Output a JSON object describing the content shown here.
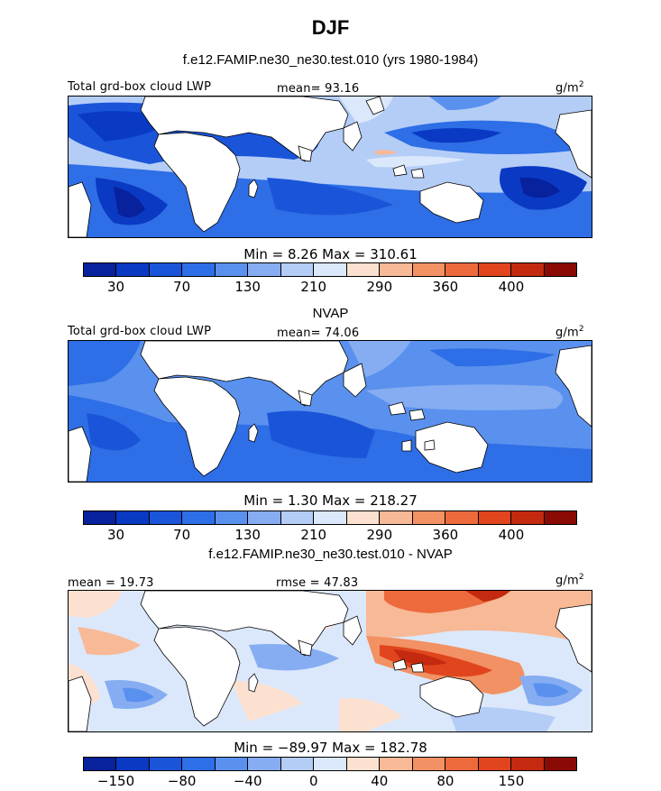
{
  "title": "DJF",
  "top_subtitle": "f.e12.FAMIP.ne30_ne30.test.010 (yrs 1980-1984)",
  "panels": [
    {
      "left_label": "Total grd-box cloud LWP",
      "center_label": "mean=  93.16",
      "unit": "g/m",
      "unit_sup": "2",
      "minmax": "Min =   8.26 Max = 310.61",
      "colorbar": {
        "colors": [
          "#08219c",
          "#0a3ac4",
          "#1a55d9",
          "#2e6ee6",
          "#5a91ee",
          "#86adf2",
          "#b4cdf7",
          "#dbe8fb",
          "#fde1d0",
          "#f8b996",
          "#f29163",
          "#ec6a3c",
          "#e0451e",
          "#c32a0f",
          "#8a0a06"
        ],
        "ticks": [
          "30",
          "70",
          "130",
          "210",
          "290",
          "360",
          "400"
        ]
      }
    },
    {
      "subtitle": "NVAP",
      "left_label": "Total grd-box cloud LWP",
      "center_label": "mean=  74.06",
      "unit": "g/m",
      "unit_sup": "2",
      "minmax": "Min =   1.30 Max = 218.27",
      "colorbar": {
        "colors": [
          "#08219c",
          "#0a3ac4",
          "#1a55d9",
          "#2e6ee6",
          "#5a91ee",
          "#86adf2",
          "#b4cdf7",
          "#dbe8fb",
          "#fde1d0",
          "#f8b996",
          "#f29163",
          "#ec6a3c",
          "#e0451e",
          "#c32a0f",
          "#8a0a06"
        ],
        "ticks": [
          "30",
          "70",
          "130",
          "210",
          "290",
          "360",
          "400"
        ]
      }
    },
    {
      "subtitle": "f.e12.FAMIP.ne30_ne30.test.010 - NVAP",
      "left_label": "mean =  19.73",
      "center_label": "rmse =  47.83",
      "unit": "g/m",
      "unit_sup": "2",
      "minmax": "Min = −89.97 Max = 182.78",
      "colorbar": {
        "colors": [
          "#08219c",
          "#0a3ac4",
          "#1a55d9",
          "#2e6ee6",
          "#5a91ee",
          "#86adf2",
          "#b4cdf7",
          "#dbe8fb",
          "#fde1d0",
          "#f8b996",
          "#f29163",
          "#ec6a3c",
          "#e0451e",
          "#c32a0f",
          "#8a0a06"
        ],
        "ticks": [
          "−150",
          "−80",
          "−40",
          "0",
          "40",
          "80",
          "150"
        ]
      }
    }
  ]
}
